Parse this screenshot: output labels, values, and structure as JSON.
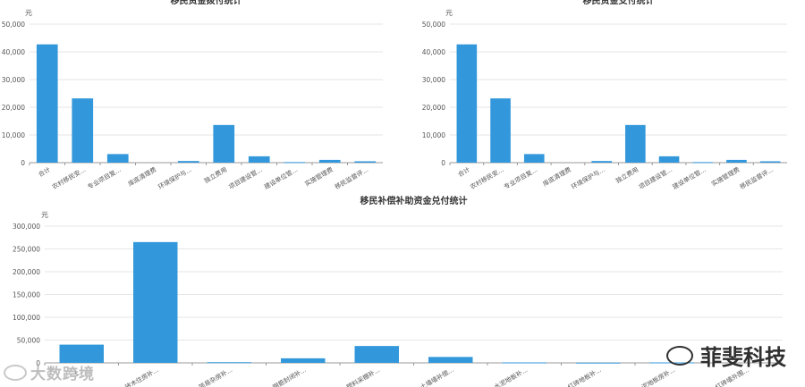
{
  "charts": [
    {
      "type": "bar",
      "title": "移民资金拨付统计",
      "unit": "元",
      "yticks": [
        "0",
        "10,000",
        "20,000",
        "30,000",
        "40,000",
        "50,000"
      ],
      "ylim": [
        0,
        50000
      ],
      "categories": [
        "合计",
        "农村移民安...",
        "专业项目复...",
        "库底清理费",
        "环境保护与...",
        "独立费用",
        "项目建设管...",
        "建设单位管...",
        "实施管理费",
        "移民监督评..."
      ],
      "values": [
        42700,
        23200,
        3100,
        0,
        600,
        13600,
        2300,
        200,
        1000,
        500
      ],
      "color": "#3398db"
    },
    {
      "type": "bar",
      "title": "移民资金支付统计",
      "unit": "元",
      "yticks": [
        "0",
        "10,000",
        "20,000",
        "30,000",
        "40,000",
        "50,000"
      ],
      "ylim": [
        0,
        50000
      ],
      "categories": [
        "合计",
        "农村移民安...",
        "专业项目复...",
        "库底清理费",
        "环境保护与...",
        "独立费用",
        "项目建设管...",
        "建设单位管...",
        "实施管理费",
        "移民监督评..."
      ],
      "values": [
        42700,
        23200,
        3100,
        0,
        600,
        13600,
        2300,
        200,
        1000,
        500
      ],
      "color": "#3398db"
    },
    {
      "type": "bar",
      "title": "移民补偿补助资金兑付统计",
      "unit": "元",
      "yticks": [
        "0",
        "50,000",
        "100,000",
        "150,000",
        "200,000",
        "250,000",
        "300,000"
      ],
      "ylim": [
        0,
        300000
      ],
      "categories": [
        "土...",
        "砖木住房补...",
        "简易杂房补...",
        "钢筋封闭补...",
        "塑料采棚补...",
        "土墙墙补偿...",
        "水泥地板补...",
        "红砖地板补...",
        "泥地板房补...",
        "红砖墙外围..."
      ],
      "values": [
        40000,
        265000,
        1500,
        10000,
        37000,
        13000,
        1000,
        500,
        1000,
        0
      ],
      "color": "#3398db"
    }
  ],
  "watermarks": {
    "left": "大数跨境",
    "right": "菲斐科技"
  }
}
